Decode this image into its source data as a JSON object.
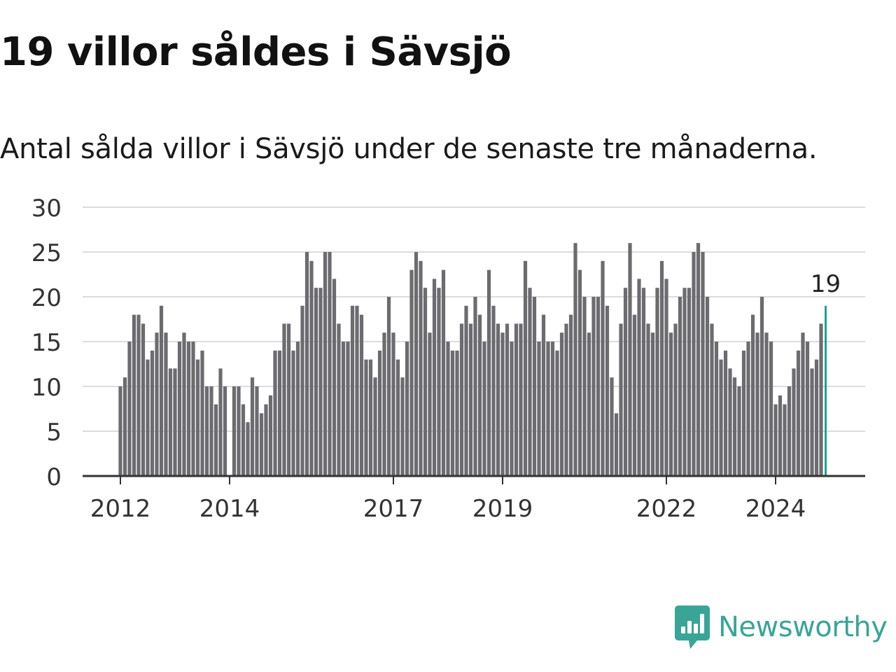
{
  "title": "19 villor såldes i Sävsjö",
  "subtitle": "Antal sålda villor i Sävsjö under de senaste tre månaderna.",
  "brand": {
    "name": "Newsworthy",
    "icon": "bar-chart-speech-bubble-icon",
    "color": "#3aa596"
  },
  "colors": {
    "bar": "#6b6b70",
    "highlight": "#17a398",
    "grid": "#dcdcdc",
    "axis": "#333333"
  },
  "chart_data": {
    "type": "bar",
    "title": "19 villor såldes i Sävsjö",
    "subtitle": "Antal sålda villor i Sävsjö under de senaste tre månaderna.",
    "ylim": [
      0,
      30
    ],
    "yticks": [
      0,
      5,
      10,
      15,
      20,
      25,
      30
    ],
    "xticks": [
      {
        "label": "2012",
        "index": 0
      },
      {
        "label": "2014",
        "index": 24
      },
      {
        "label": "2017",
        "index": 60
      },
      {
        "label": "2019",
        "index": 84
      },
      {
        "label": "2022",
        "index": 120
      },
      {
        "label": "2024",
        "index": 144
      }
    ],
    "grid": true,
    "values": [
      10,
      11,
      15,
      18,
      18,
      17,
      13,
      14,
      16,
      19,
      16,
      12,
      12,
      15,
      16,
      15,
      15,
      13,
      14,
      10,
      10,
      8,
      12,
      10,
      null,
      10,
      10,
      8,
      6,
      11,
      10,
      7,
      8,
      9,
      14,
      14,
      17,
      17,
      14,
      15,
      19,
      25,
      24,
      21,
      21,
      25,
      25,
      22,
      17,
      15,
      15,
      19,
      19,
      18,
      13,
      13,
      11,
      14,
      16,
      20,
      16,
      13,
      11,
      15,
      23,
      25,
      24,
      21,
      16,
      22,
      21,
      23,
      15,
      14,
      14,
      17,
      19,
      17,
      20,
      18,
      15,
      23,
      19,
      17,
      16,
      17,
      15,
      17,
      17,
      24,
      21,
      20,
      15,
      18,
      15,
      15,
      14,
      16,
      17,
      18,
      26,
      23,
      20,
      16,
      20,
      20,
      24,
      19,
      11,
      7,
      17,
      21,
      26,
      18,
      22,
      21,
      17,
      16,
      21,
      24,
      22,
      16,
      17,
      20,
      21,
      21,
      25,
      26,
      25,
      20,
      17,
      15,
      13,
      14,
      12,
      11,
      10,
      14,
      15,
      18,
      16,
      20,
      16,
      15,
      8,
      9,
      8,
      10,
      12,
      14,
      16,
      15,
      12,
      13,
      17,
      19
    ],
    "highlight": {
      "index": 155,
      "value": 19,
      "label": "19"
    }
  }
}
